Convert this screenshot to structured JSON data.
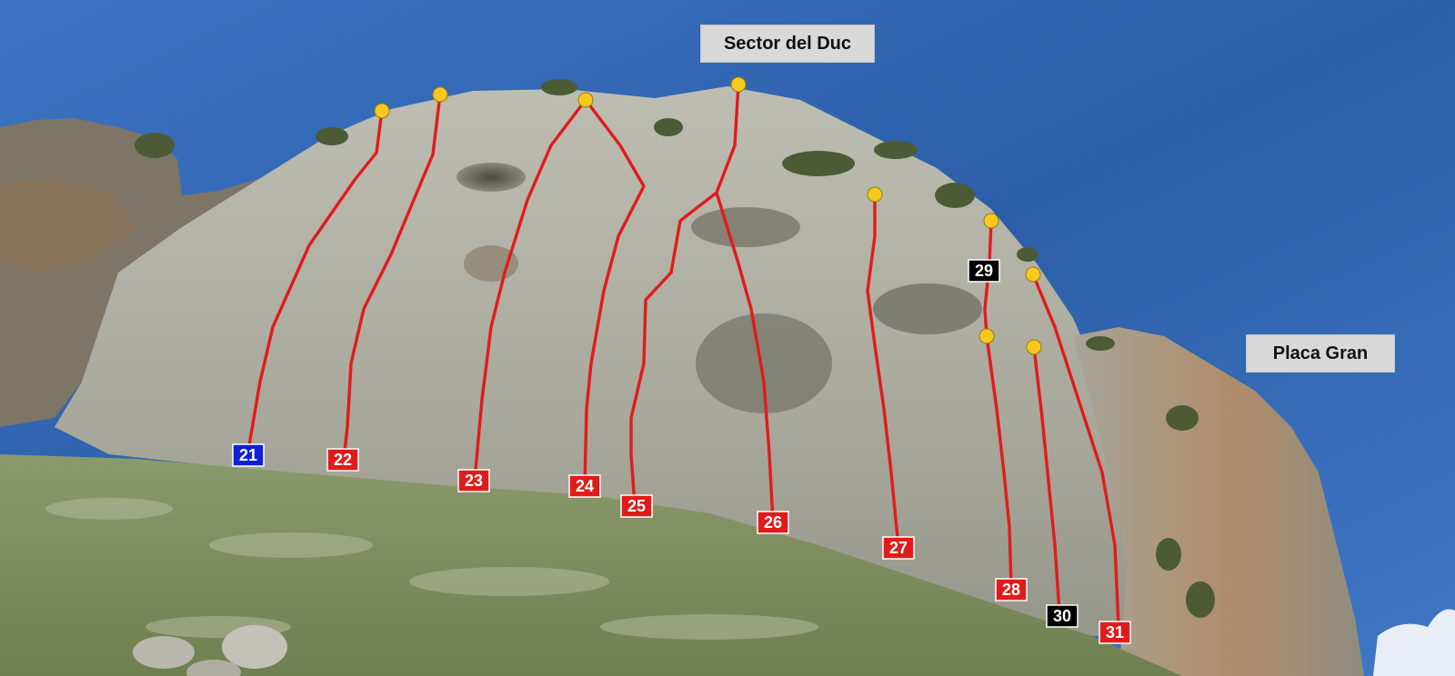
{
  "sector_labels": {
    "main": "Sector del Duc",
    "secondary": "Placa Gran"
  },
  "colors": {
    "route_line": "#e11b1b",
    "anchor": "#f7c81e",
    "badge_default": "#e11b1b",
    "badge_blue": "#1020d6",
    "badge_black": "#000000"
  },
  "routes": [
    {
      "id": "route-21",
      "number": "21",
      "badge_color": "blue"
    },
    {
      "id": "route-22",
      "number": "22",
      "badge_color": "red"
    },
    {
      "id": "route-23",
      "number": "23",
      "badge_color": "red"
    },
    {
      "id": "route-24",
      "number": "24",
      "badge_color": "red"
    },
    {
      "id": "route-25",
      "number": "25",
      "badge_color": "red"
    },
    {
      "id": "route-26",
      "number": "26",
      "badge_color": "red"
    },
    {
      "id": "route-27",
      "number": "27",
      "badge_color": "red"
    },
    {
      "id": "route-28",
      "number": "28",
      "badge_color": "red"
    },
    {
      "id": "route-29",
      "number": "29",
      "badge_color": "black"
    },
    {
      "id": "route-30",
      "number": "30",
      "badge_color": "black"
    },
    {
      "id": "route-31",
      "number": "31",
      "badge_color": "red"
    }
  ]
}
